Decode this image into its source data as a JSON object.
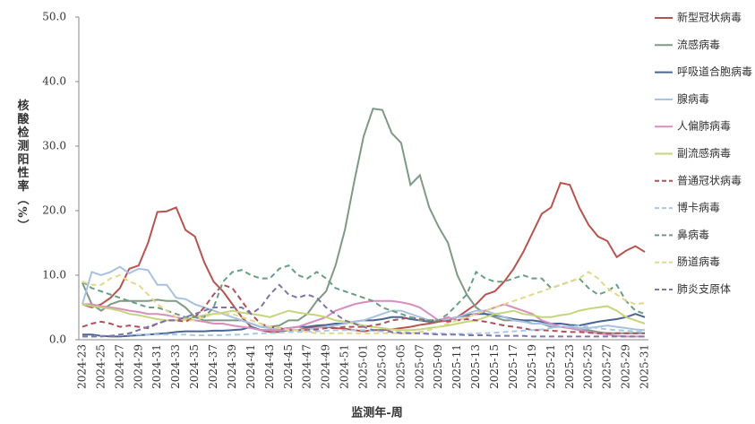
{
  "chart_data": {
    "type": "line",
    "x_label": "监测年-周",
    "y_label": "核酸检测阳性率（%）",
    "categories": [
      "2024-23",
      null,
      "2024-25",
      null,
      "2024-27",
      null,
      "2024-29",
      null,
      "2024-31",
      null,
      "2024-33",
      null,
      "2024-35",
      null,
      "2024-37",
      null,
      "2024-39",
      null,
      "2024-41",
      null,
      "2024-43",
      null,
      "2024-45",
      null,
      "2024-47",
      null,
      "2024-49",
      null,
      "2024-51",
      null,
      "2025-01",
      null,
      "2025-03",
      null,
      "2025-05",
      null,
      "2025-07",
      null,
      "2025-09",
      null,
      "2025-11",
      null,
      "2025-13",
      null,
      "2025-15",
      null,
      "2025-17",
      null,
      "2025-19",
      null,
      "2025-21",
      null,
      "2025-23",
      null,
      "2025-25",
      null,
      "2025-27",
      null,
      "2025-29",
      null,
      "2025-31"
    ],
    "ylim": [
      0,
      50
    ],
    "yticks": [
      {
        "value": 0,
        "label": "0.0"
      },
      {
        "value": 10,
        "label": "10.0"
      },
      {
        "value": 20,
        "label": "20.0"
      },
      {
        "value": 30,
        "label": "30.0"
      },
      {
        "value": 40,
        "label": "40.0"
      },
      {
        "value": 50,
        "label": "50.0"
      }
    ],
    "series": [
      {
        "name": "新型冠状病毒",
        "color": "#b85450",
        "dashed": false,
        "values": [
          5.5,
          5,
          5.5,
          6.5,
          8,
          11,
          11.5,
          15,
          19.8,
          19.9,
          20.5,
          17,
          16,
          12,
          9,
          7.5,
          5.5,
          3.5,
          2,
          1.5,
          1.2,
          1.2,
          1.5,
          1.5,
          1.8,
          2,
          2,
          1.8,
          1.7,
          1.5,
          1.3,
          1.5,
          1.5,
          1.6,
          1.8,
          2,
          2.3,
          2.5,
          2.8,
          3,
          3.5,
          4.5,
          5.5,
          7,
          7.5,
          9,
          11,
          13.5,
          16.5,
          19.5,
          20.5,
          24.3,
          24,
          20.5,
          17.8,
          16,
          15.3,
          12.8,
          13.8,
          14.5,
          13.6
        ]
      },
      {
        "name": "流感病毒",
        "color": "#7f9a84",
        "dashed": false,
        "values": [
          8.8,
          5.5,
          4.5,
          5.5,
          6,
          6,
          6,
          6,
          6.2,
          6,
          6,
          5,
          3.5,
          3,
          3,
          3,
          3,
          3,
          2.5,
          2,
          2,
          2.2,
          3,
          3,
          4,
          6,
          7.5,
          11.5,
          17,
          24.5,
          31.5,
          35.8,
          35.6,
          32,
          30.5,
          24,
          25.5,
          20.5,
          17.5,
          15,
          10,
          7,
          5,
          4,
          3.5,
          3,
          3,
          3,
          2.5,
          2.5,
          2,
          2,
          1.8,
          1.5,
          1.5,
          1.2,
          1,
          1,
          1,
          1,
          1
        ]
      },
      {
        "name": "呼吸道合胞病毒",
        "color": "#4a6591",
        "dashed": false,
        "values": [
          0.8,
          0.8,
          0.6,
          0.5,
          0.5,
          0.6,
          0.7,
          0.8,
          0.9,
          1,
          1.2,
          1.3,
          1.3,
          1.3,
          1.4,
          1.4,
          1.5,
          1.6,
          2,
          1.5,
          1.5,
          1.6,
          1.8,
          2,
          2,
          2.2,
          2.3,
          2.5,
          2.5,
          2.8,
          3,
          3,
          3.2,
          3.5,
          3.5,
          3.2,
          3,
          2.8,
          3,
          3.2,
          3.5,
          3.8,
          4,
          4,
          3.8,
          3.5,
          3.2,
          3,
          3,
          2.8,
          2.5,
          2.5,
          2.3,
          2.2,
          2.5,
          2.8,
          3,
          3.2,
          3.5,
          4,
          3.5
        ]
      },
      {
        "name": "腺病毒",
        "color": "#a9c1e0",
        "dashed": false,
        "values": [
          5.5,
          10.5,
          10,
          10.5,
          11.3,
          10.3,
          11,
          10.8,
          8.5,
          8.5,
          6.5,
          6.3,
          5.5,
          5,
          4.5,
          4,
          3.5,
          3,
          2.5,
          2,
          1.8,
          1.6,
          1.5,
          1.5,
          1.6,
          1.8,
          2,
          2.2,
          2.5,
          2.8,
          3,
          3.5,
          4,
          4.5,
          4.5,
          4,
          3.5,
          3,
          3,
          3.2,
          3.5,
          4,
          4.5,
          4.5,
          4,
          3.5,
          3,
          2.8,
          2.5,
          2.5,
          2.2,
          2,
          2,
          1.8,
          1.8,
          2,
          2.2,
          2,
          1.8,
          1.6,
          1.5
        ]
      },
      {
        "name": "人偏肺病毒",
        "color": "#d68fbf",
        "dashed": false,
        "values": [
          5.5,
          5.5,
          5.2,
          5,
          4.8,
          4.5,
          4.3,
          4,
          4,
          3.8,
          3.5,
          3.2,
          3,
          2.8,
          2.5,
          2.5,
          2.2,
          2,
          1.8,
          1.5,
          1.5,
          1.5,
          1.8,
          2,
          2.5,
          3,
          3.5,
          4.5,
          5,
          5.5,
          5.8,
          6,
          6,
          6,
          5.8,
          5.5,
          5,
          4,
          3,
          3.5,
          3,
          3.5,
          4,
          4.5,
          5,
          5.5,
          5,
          4.5,
          4,
          3,
          2.5,
          2,
          1.8,
          1.5,
          1.2,
          1,
          0.8,
          0.6,
          0.5,
          0.5,
          0.5
        ]
      },
      {
        "name": "副流感病毒",
        "color": "#c5d57a",
        "dashed": false,
        "values": [
          5.5,
          5.2,
          5,
          4.8,
          4.5,
          4,
          3.8,
          3.5,
          3.2,
          3,
          3,
          3.2,
          3.5,
          3.8,
          4,
          4.2,
          4.5,
          4.2,
          4,
          3.8,
          3.5,
          4,
          4.5,
          4.2,
          4,
          3.8,
          3.5,
          3,
          2.8,
          2.5,
          2.2,
          2,
          1.8,
          1.6,
          1.5,
          1.5,
          1.6,
          1.8,
          2,
          2.2,
          2.5,
          2.8,
          3,
          3.5,
          4,
          4.2,
          4.5,
          4,
          3.8,
          3.5,
          3.5,
          3.8,
          4,
          4.5,
          4.8,
          5,
          5.2,
          4.5,
          3.5,
          3,
          2.5
        ]
      },
      {
        "name": "普通冠状病毒",
        "color": "#b0505a",
        "dashed": true,
        "values": [
          2,
          2.5,
          2.8,
          2.5,
          2,
          2.2,
          2,
          1.8,
          2.5,
          3,
          3,
          2.8,
          3.5,
          5,
          7,
          8.5,
          8,
          6,
          4,
          2.5,
          2,
          1.8,
          1.5,
          1.5,
          1.5,
          1.6,
          1.8,
          1.8,
          2,
          2,
          2,
          2.2,
          2.5,
          3,
          3.2,
          3.5,
          3.2,
          3,
          3,
          2.8,
          3,
          3.2,
          3,
          2.8,
          2.5,
          2.2,
          2,
          1.8,
          1.5,
          1.5,
          1.4,
          1.3,
          1.2,
          1.2,
          1.1,
          1,
          1,
          1,
          1,
          1,
          1
        ]
      },
      {
        "name": "博卡病毒",
        "color": "#a9c8e8",
        "dashed": true,
        "values": [
          0.5,
          0.5,
          0.6,
          0.6,
          0.7,
          0.8,
          0.8,
          0.8,
          0.8,
          0.8,
          0.8,
          0.8,
          0.7,
          0.7,
          0.7,
          0.7,
          0.8,
          0.8,
          0.9,
          1,
          1,
          1.1,
          1.2,
          1.2,
          1.3,
          1.3,
          1.4,
          1.5,
          1.5,
          1.5,
          1.5,
          1.4,
          1.3,
          1.2,
          1.2,
          1.1,
          1,
          1,
          1,
          0.9,
          0.9,
          0.9,
          1,
          1,
          1.1,
          1.2,
          1.3,
          1.4,
          1.5,
          1.6,
          1.8,
          2,
          2,
          2.2,
          2,
          1.8,
          1.6,
          1.5,
          1.4,
          1.3,
          1.2
        ]
      },
      {
        "name": "鼻病毒",
        "color": "#6a9e84",
        "dashed": true,
        "values": [
          9,
          8,
          7.5,
          7,
          6.5,
          6,
          5.5,
          5,
          5,
          4.5,
          4,
          3.5,
          3.5,
          3.5,
          5,
          9,
          10.5,
          10.8,
          10,
          9.5,
          9.5,
          11,
          11.5,
          10,
          9.5,
          10.5,
          9.5,
          8,
          7.5,
          7,
          6.5,
          6,
          5,
          4.5,
          4,
          3.5,
          3,
          3,
          3,
          4,
          5.5,
          7,
          10.5,
          9.5,
          9,
          9,
          9.5,
          10,
          9.5,
          9.5,
          8,
          8.5,
          9,
          9.5,
          8,
          7,
          7.5,
          8.5,
          6,
          4.5,
          4
        ]
      },
      {
        "name": "肠道病毒",
        "color": "#e3d88a",
        "dashed": true,
        "values": [
          9,
          8.5,
          8.5,
          9.5,
          10,
          9,
          8.5,
          7,
          5.5,
          4.5,
          3.5,
          3,
          3,
          3.5,
          4,
          4,
          4,
          3.5,
          3,
          2.5,
          2,
          1.8,
          1.5,
          1.5,
          1.2,
          1,
          1,
          1,
          1,
          1,
          1,
          1,
          1,
          1,
          1,
          1,
          1.2,
          1.5,
          2,
          2.5,
          3,
          3.5,
          4,
          4.5,
          5,
          5.5,
          6,
          6.5,
          7,
          7.5,
          8,
          8.5,
          9,
          9.5,
          10.5,
          9.5,
          8,
          7,
          6,
          5.5,
          5.7
        ]
      },
      {
        "name": "肺炎支原体",
        "color": "#8074a8",
        "dashed": true,
        "values": [
          0.5,
          0.5,
          0.5,
          0.6,
          0.8,
          1,
          1.5,
          2,
          2.5,
          3,
          3,
          3.5,
          4,
          4.5,
          5,
          5,
          5,
          5,
          4,
          5,
          7,
          8.5,
          7,
          6.5,
          7,
          6.5,
          5,
          4,
          3,
          2.5,
          2,
          1.5,
          1.5,
          1.2,
          1,
          1,
          1,
          0.9,
          0.8,
          0.8,
          0.8,
          0.7,
          0.7,
          0.7,
          0.6,
          0.6,
          0.6,
          0.6,
          0.5,
          0.5,
          0.5,
          0.5,
          0.5,
          0.5,
          0.5,
          0.5,
          0.5,
          0.5,
          0.5,
          0.5,
          0.5
        ]
      }
    ]
  }
}
